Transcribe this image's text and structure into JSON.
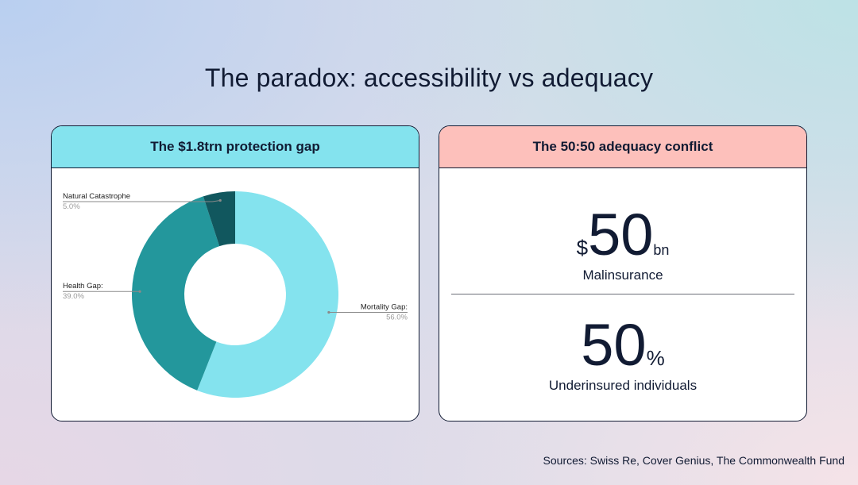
{
  "page": {
    "title": "The paradox: accessibility vs adequacy"
  },
  "left_card": {
    "header": "The $1.8trn protection gap"
  },
  "right_card": {
    "header": "The 50:50 adequacy conflict",
    "stat1": {
      "prefix": "$",
      "value": "50",
      "suffix": "bn",
      "label": "Malinsurance"
    },
    "stat2": {
      "value": "50",
      "suffix": "%",
      "label": "Underinsured individuals"
    }
  },
  "sources": "Sources: Swiss Re, Cover Genius, The Commonwealth Fund",
  "colors": {
    "mortality": "#84e3ee",
    "health": "#23979c",
    "natcat": "#11575e",
    "leader": "#8a8a8a",
    "label_value": "#9a9a9a",
    "label_name": "#222222"
  },
  "chart_data": {
    "type": "pie",
    "style": "donut",
    "title": "The $1.8trn protection gap",
    "start_angle_deg": 0,
    "direction": "clockwise",
    "slices": [
      {
        "name": "Mortality Gap:",
        "value": 56.0,
        "label": "56.0%",
        "color": "#84e3ee",
        "label_side": "right"
      },
      {
        "name": "Health Gap:",
        "value": 39.0,
        "label": "39.0%",
        "color": "#23979c",
        "label_side": "left"
      },
      {
        "name": "Natural Catastrophe",
        "value": 5.0,
        "label": "5.0%",
        "color": "#11575e",
        "label_side": "left"
      }
    ]
  }
}
